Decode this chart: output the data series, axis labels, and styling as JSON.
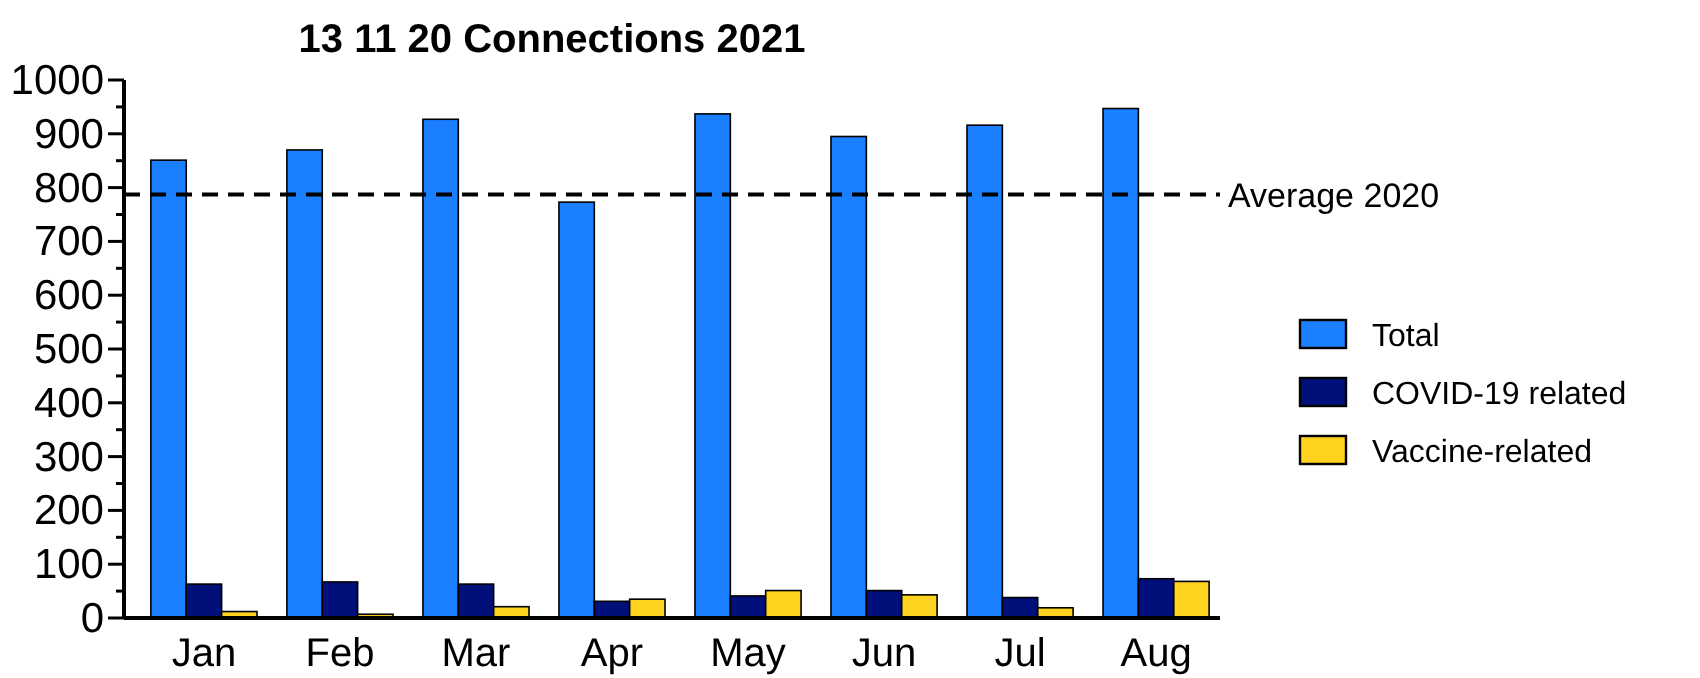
{
  "chart_data": {
    "type": "bar",
    "title": "13 11 20 Connections 2021",
    "categories": [
      "Jan",
      "Feb",
      "Mar",
      "Apr",
      "May",
      "Jun",
      "Jul",
      "Aug"
    ],
    "series": [
      {
        "name": "Total",
        "color": "#1a80ff",
        "values": [
          851,
          870,
          927,
          773,
          937,
          895,
          916,
          947
        ]
      },
      {
        "name": "COVID-19 related",
        "color": "#000f7a",
        "values": [
          63,
          67,
          63,
          31,
          41,
          51,
          38,
          73
        ]
      },
      {
        "name": "Vaccine-related",
        "color": "#ffd21f",
        "values": [
          12,
          7,
          21,
          35,
          51,
          43,
          19,
          68
        ]
      }
    ],
    "ylim": [
      0,
      1000
    ],
    "yticks": [
      0,
      {
        "value": 50,
        "label": null
      },
      100,
      {
        "value": 150,
        "label": null
      },
      200,
      {
        "value": 250,
        "label": null
      },
      300,
      {
        "value": 350,
        "label": null
      },
      400,
      {
        "value": 450,
        "label": null
      },
      500,
      {
        "value": 550,
        "label": null
      },
      600,
      {
        "value": 650,
        "label": null
      },
      700,
      {
        "value": 750,
        "label": null
      },
      800,
      {
        "value": 850,
        "label": null
      },
      900,
      {
        "value": 950,
        "label": null
      },
      1000
    ],
    "ref_lines": [
      {
        "axis": "y",
        "value": 787,
        "label": "Average 2020",
        "color": "#000000",
        "line_style": "dashed"
      }
    ],
    "grid": false,
    "legend": "right"
  }
}
